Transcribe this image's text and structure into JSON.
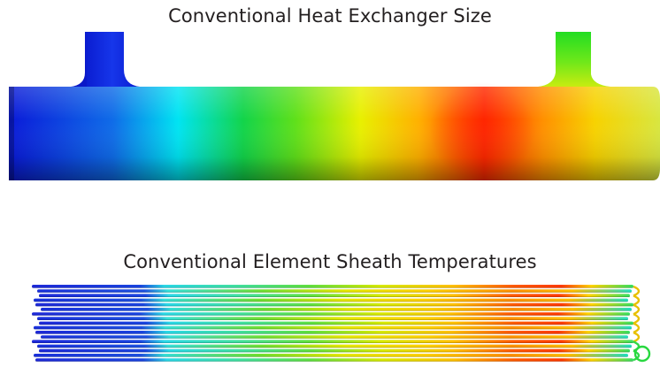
{
  "heat_exchanger": {
    "title": "Conventional Heat Exchanger Size"
  },
  "element_sheath": {
    "title": "Conventional Element Sheath Temperatures"
  },
  "colors": {
    "temperature_scale": [
      "#0a1ad8",
      "#0f6ce8",
      "#00e8f0",
      "#12d44a",
      "#5fe01a",
      "#f0f000",
      "#ff9a00",
      "#ff2a00",
      "#ff8800",
      "#f7d200"
    ],
    "sheath_scale": [
      "#1e2ad9",
      "#1a66e0",
      "#2fe0e6",
      "#55e040",
      "#e0e800",
      "#ffb400",
      "#ff3000",
      "#ffd000",
      "#34e040"
    ]
  }
}
